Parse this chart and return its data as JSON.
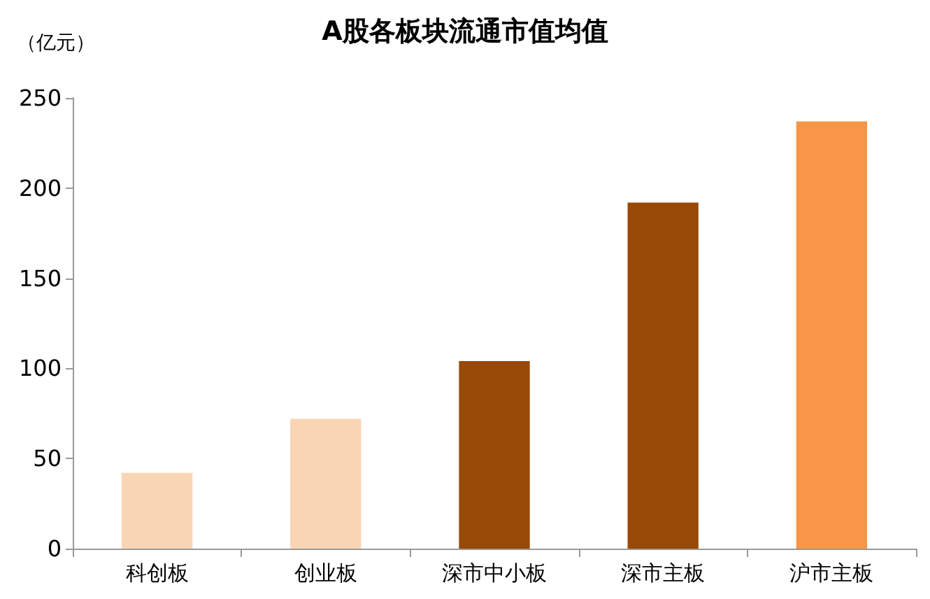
{
  "chart_data": {
    "type": "bar",
    "title": "A股各板块流通市值均值",
    "ylabel": "（亿元）",
    "categories": [
      "科创板",
      "创业板",
      "深市中小板",
      "深市主板",
      "沪市主板"
    ],
    "values": [
      42,
      72,
      104,
      192,
      237
    ],
    "colors": [
      "#fad5b4",
      "#fad5b4",
      "#984807",
      "#984807",
      "#f79646"
    ],
    "ylim": [
      0,
      250
    ],
    "yticks": [
      0,
      50,
      100,
      150,
      200,
      250
    ],
    "grid": false
  }
}
